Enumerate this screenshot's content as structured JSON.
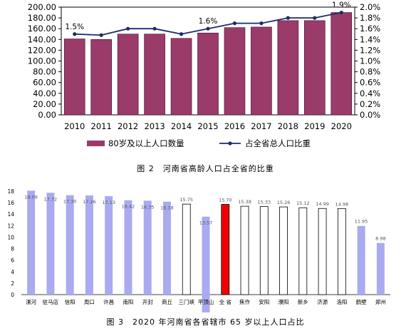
{
  "chart_data": [
    {
      "type": "bar",
      "title": "图 2　河南省高龄人口占全省的比重",
      "categories": [
        "2010",
        "2011",
        "2012",
        "2013",
        "2014",
        "2015",
        "2016",
        "2017",
        "2018",
        "2019",
        "2020"
      ],
      "series": [
        {
          "name": "80岁及以上人口数量",
          "type": "bar",
          "axis": "left",
          "color": "#9b3b6a",
          "values": [
            141,
            140,
            150,
            150,
            142,
            152,
            162,
            163,
            175,
            175,
            190
          ]
        },
        {
          "name": "占全省总人口比重",
          "type": "line",
          "axis": "right",
          "color": "#1f2a6b",
          "values": [
            1.5,
            1.48,
            1.6,
            1.6,
            1.5,
            1.6,
            1.7,
            1.7,
            1.8,
            1.8,
            1.9
          ]
        }
      ],
      "point_labels": [
        {
          "index": 0,
          "text": "1.5%"
        },
        {
          "index": 5,
          "text": "1.6%"
        },
        {
          "index": 10,
          "text": "1.9%"
        }
      ],
      "yleft_ticks": [
        "0.00",
        "20.00",
        "40.00",
        "60.00",
        "80.00",
        "100.00",
        "120.00",
        "140.00",
        "160.00",
        "180.00",
        "200.00"
      ],
      "yright_ticks": [
        "0.0%",
        "0.2%",
        "0.4%",
        "0.6%",
        "0.8%",
        "1.0%",
        "1.2%",
        "1.4%",
        "1.6%",
        "1.8%",
        "2.0%"
      ],
      "yleft_lim": [
        0,
        200
      ],
      "yright_lim": [
        0,
        2.0
      ]
    },
    {
      "type": "bar",
      "title": "图 3　2020 年河南省各省辖市 65 岁以上人口占比",
      "categories": [
        "漯河",
        "驻马店",
        "信阳",
        "周口",
        "许昌",
        "南阳",
        "开封",
        "商丘",
        "三门峡",
        "平顶山",
        "全 省",
        "焦作",
        "安阳",
        "濮阳",
        "新乡",
        "济源",
        "洛阳",
        "鹤壁",
        "郑州"
      ],
      "values": [
        18.09,
        17.72,
        17.3,
        17.26,
        17.13,
        16.42,
        16.35,
        16.18,
        15.75,
        13.57,
        15.7,
        15.38,
        15.33,
        15.26,
        15.12,
        14.99,
        14.98,
        11.95,
        8.98
      ],
      "value_labels": [
        "18.09",
        "17.72",
        "17.30",
        "17.26",
        "17.13",
        "16.42",
        "16.35",
        "16.18",
        "15.75",
        "13.57",
        "15.70",
        "15.38",
        "15.33",
        "15.26",
        "15.12",
        "14.99",
        "14.98",
        "11.95",
        "8.98"
      ],
      "bar_styles": [
        "filled",
        "filled",
        "filled",
        "filled",
        "filled",
        "filled",
        "filled",
        "filled",
        "outline",
        "filled",
        "highlight",
        "outline",
        "outline",
        "outline",
        "outline",
        "outline",
        "outline",
        "filled",
        "filled"
      ],
      "yticks": [
        "0",
        "2",
        "4",
        "6",
        "8",
        "10",
        "12",
        "14",
        "16",
        "18"
      ],
      "ylim": [
        0,
        18
      ],
      "colors": {
        "filled": "#aaaaf0",
        "outline": "#ffffff",
        "highlight": "#ee0000"
      }
    }
  ]
}
